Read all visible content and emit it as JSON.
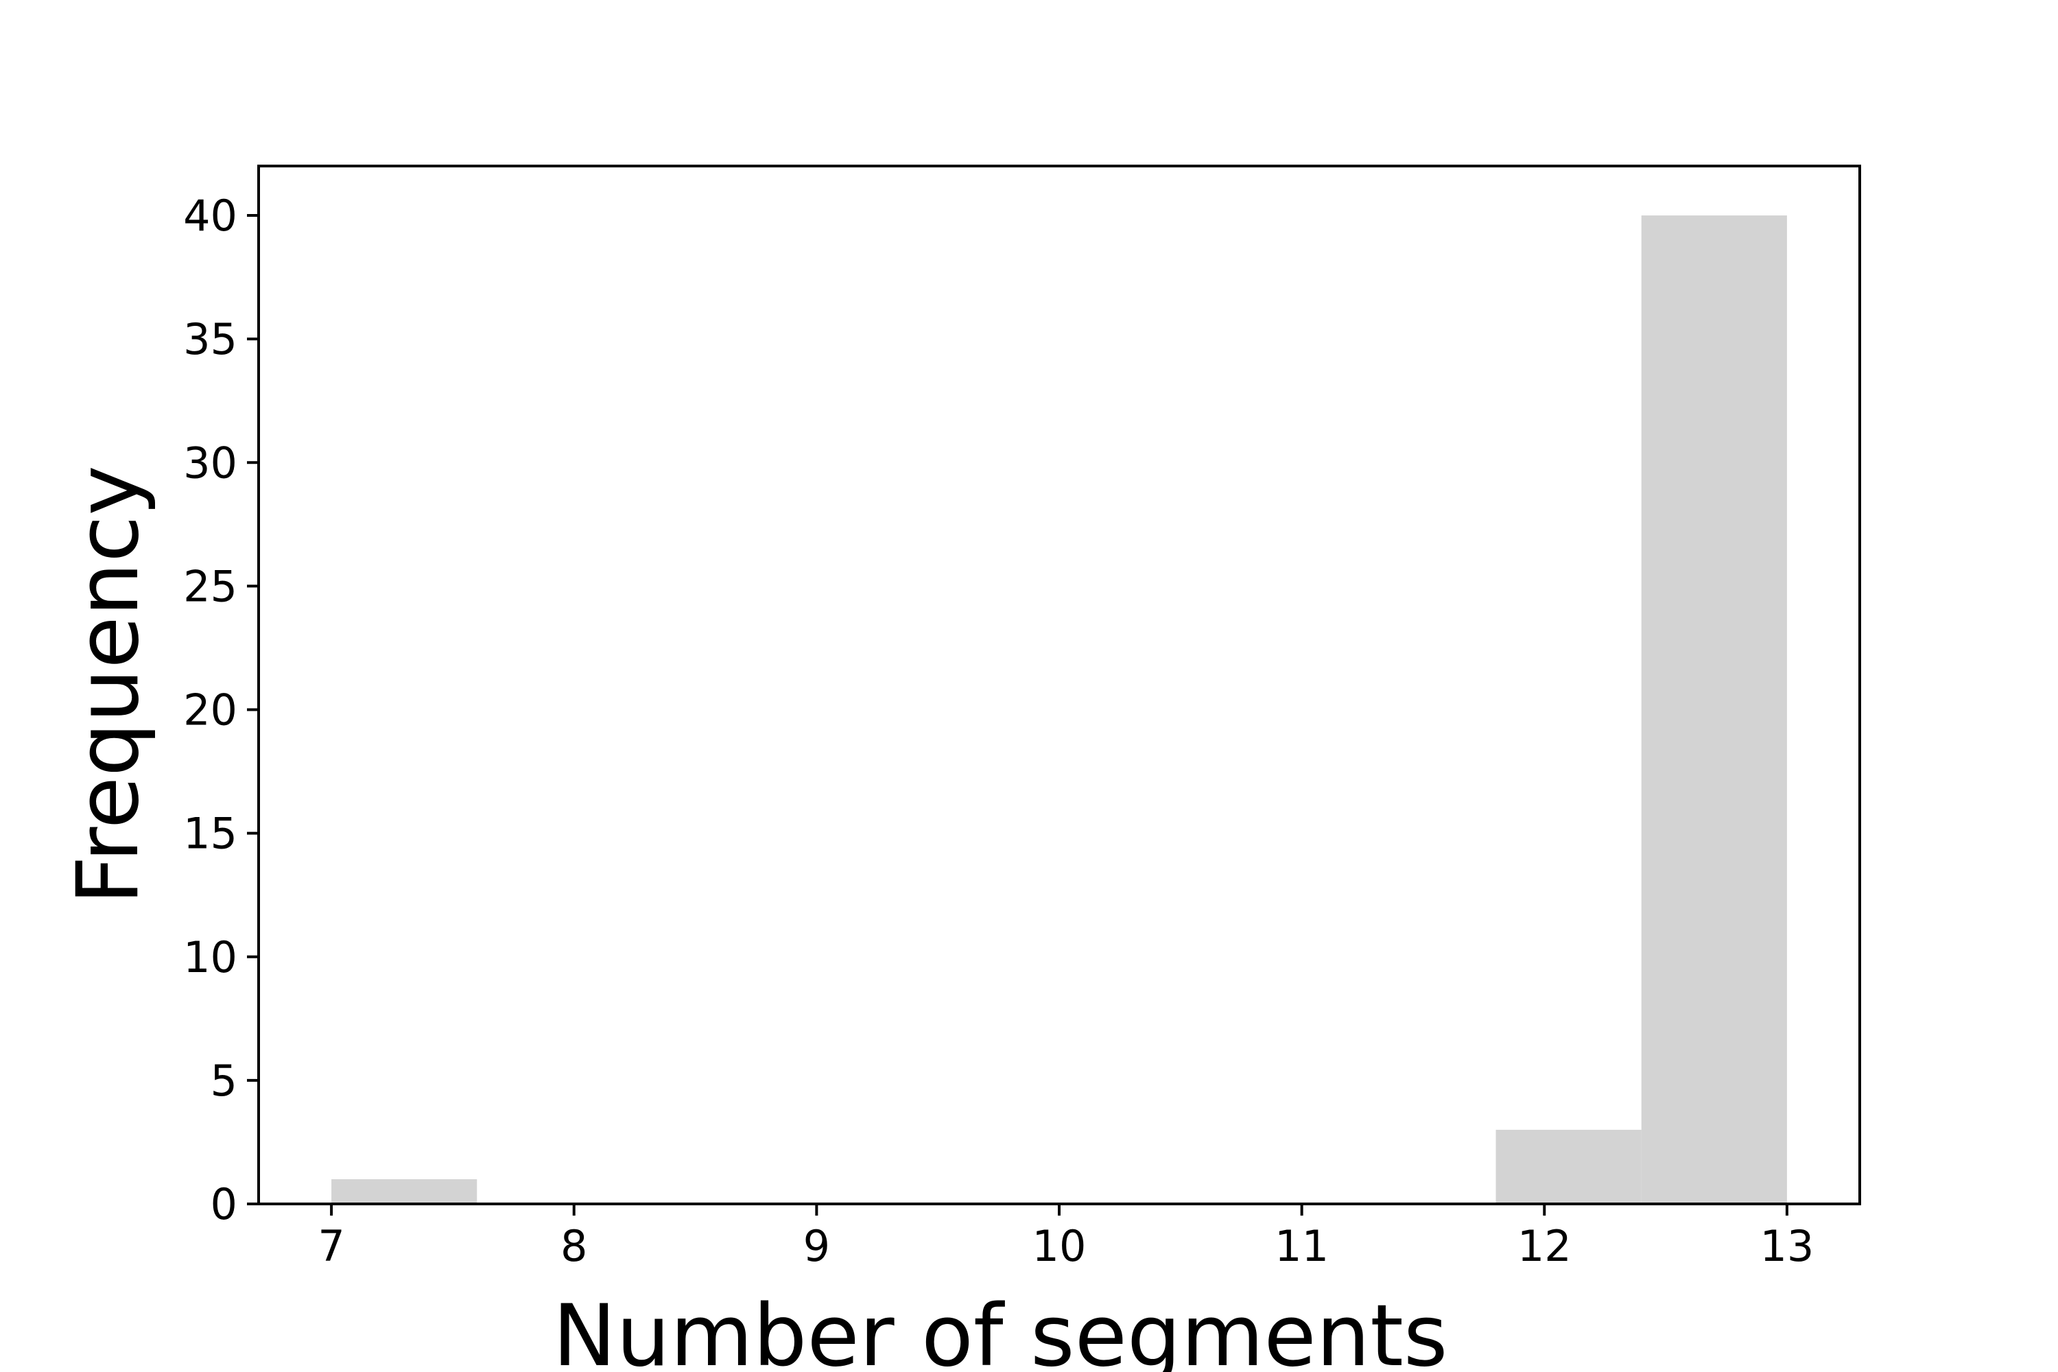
{
  "chart_data": {
    "type": "histogram",
    "title": "",
    "xlabel": "Number of segments",
    "ylabel": "Frequency",
    "bins": [
      {
        "x0": 7.0,
        "x1": 7.6,
        "count": 1
      },
      {
        "x0": 7.6,
        "x1": 8.2,
        "count": 0
      },
      {
        "x0": 8.2,
        "x1": 8.8,
        "count": 0
      },
      {
        "x0": 8.8,
        "x1": 9.4,
        "count": 0
      },
      {
        "x0": 9.4,
        "x1": 10.0,
        "count": 0
      },
      {
        "x0": 10.0,
        "x1": 10.6,
        "count": 0
      },
      {
        "x0": 10.6,
        "x1": 11.2,
        "count": 0
      },
      {
        "x0": 11.2,
        "x1": 11.8,
        "count": 0
      },
      {
        "x0": 11.8,
        "x1": 12.4,
        "count": 3
      },
      {
        "x0": 12.4,
        "x1": 13.0,
        "count": 40
      }
    ],
    "xlim": [
      6.7,
      13.3
    ],
    "ylim": [
      0,
      42
    ],
    "xticks": [
      7,
      8,
      9,
      10,
      11,
      12,
      13
    ],
    "yticks": [
      0,
      5,
      10,
      15,
      20,
      25,
      30,
      35,
      40
    ],
    "grid": false,
    "colors": {
      "bar": "#d3d3d3",
      "axis": "#000000"
    }
  }
}
